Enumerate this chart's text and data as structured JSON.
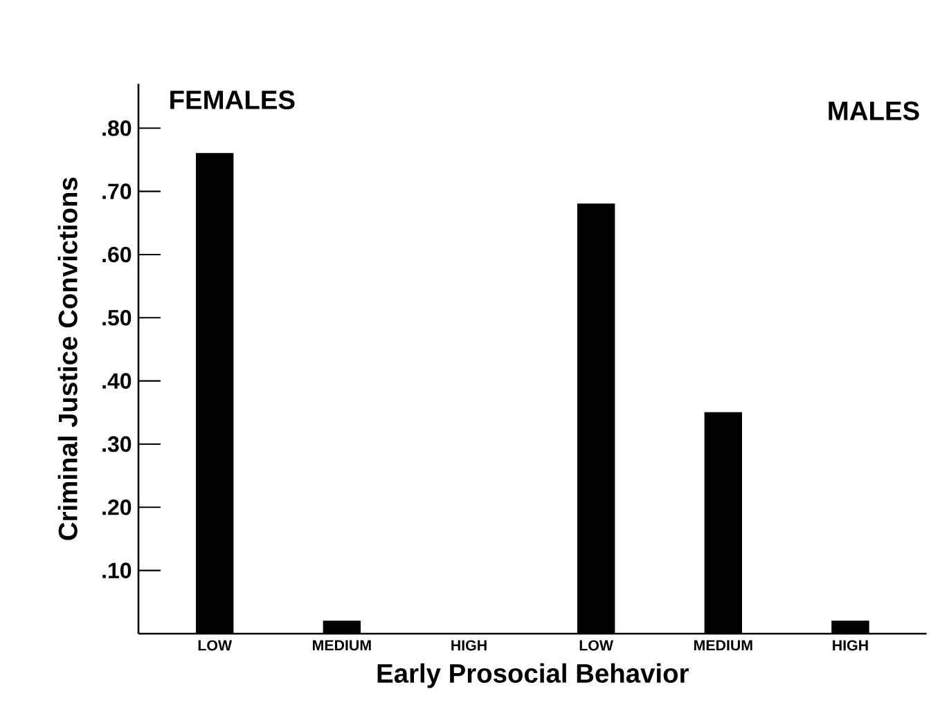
{
  "chart_data": {
    "type": "bar",
    "xlabel": "Early Prosocial Behavior",
    "ylabel": "Criminal Justice Convictions",
    "categories": [
      "LOW",
      "MEDIUM",
      "HIGH",
      "LOW",
      "MEDIUM",
      "HIGH"
    ],
    "values": [
      0.76,
      0.02,
      0,
      0.68,
      0.35,
      0.02
    ],
    "color": "#000000",
    "ylim": [
      0,
      0.87
    ],
    "yticks": [
      {
        "value": 0.1,
        "label": ".10"
      },
      {
        "value": 0.2,
        "label": ".20"
      },
      {
        "value": 0.3,
        "label": ".30"
      },
      {
        "value": 0.4,
        "label": ".40"
      },
      {
        "value": 0.5,
        "label": ".50"
      },
      {
        "value": 0.6,
        "label": ".60"
      },
      {
        "value": 0.7,
        "label": ".70"
      },
      {
        "value": 0.8,
        "label": ".80"
      }
    ],
    "annotations": [
      "FEMALES",
      "MALES"
    ],
    "grid": false
  }
}
